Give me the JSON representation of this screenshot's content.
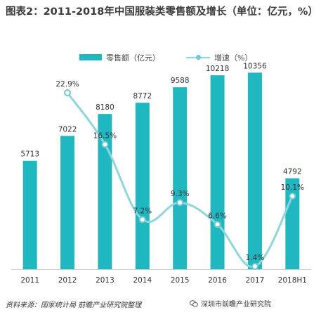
{
  "title": "图表2：2011-2018年中国服装类零售额及增长（单位：亿元，%）",
  "colors": {
    "bar": "#20b8c0",
    "line": "#8fd6dc",
    "dot": "#6fc9d1",
    "text": "#333333"
  },
  "legend": {
    "bar_label": "零售额（亿元）",
    "line_label": "增速（%）"
  },
  "chart_data": {
    "type": "bar",
    "categories": [
      "2011",
      "2012",
      "2013",
      "2014",
      "2015",
      "2016",
      "2017",
      "2018H1"
    ],
    "series": [
      {
        "name": "零售额（亿元）",
        "type": "bar",
        "values": [
          5713,
          7022,
          8180,
          8772,
          9588,
          10218,
          10356,
          4792
        ],
        "labels": [
          "5713",
          "7022",
          "8180",
          "8772",
          "9588",
          "10218",
          "10356",
          "4792"
        ]
      },
      {
        "name": "增速（%）",
        "type": "line",
        "values": [
          null,
          22.9,
          16.5,
          7.2,
          9.3,
          6.6,
          1.4,
          10.1
        ],
        "labels": [
          "",
          "22.9%",
          "16.5%",
          "7.2%",
          "9.3%",
          "6.6%",
          "1.4%",
          "10.1%"
        ]
      }
    ],
    "bar_ylim": [
      0,
      11000
    ],
    "line_ylim": [
      -2,
      25
    ],
    "grid": false,
    "legend_position": "top"
  },
  "source": "资料来源：国家统计局 前瞻产业研究院整理",
  "credit": "深圳市前瞻产业研究院"
}
